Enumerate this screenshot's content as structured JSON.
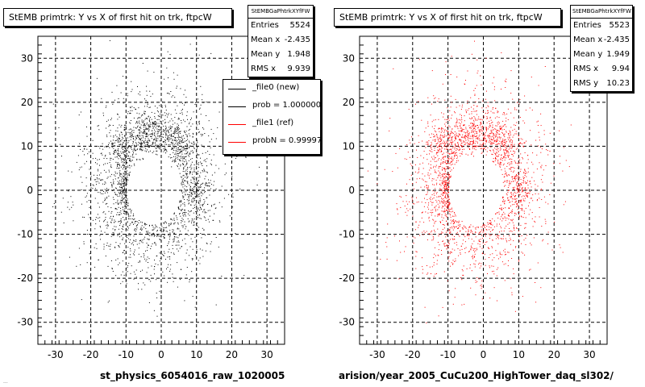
{
  "left_panel": {
    "title": "StEMB primtrk: Y vs X of first hit on trk, ftpcW",
    "stats": {
      "header": "StEMBGaPhtrkXYfFW",
      "rows": [
        {
          "label": "Entries",
          "value": "5524"
        },
        {
          "label": "Mean x",
          "value": "-2.435"
        },
        {
          "label": "Mean y",
          "value": "1.948"
        },
        {
          "label": "RMS x",
          "value": "9.939"
        }
      ]
    },
    "legend": [
      {
        "label": "_file0 (new)",
        "color": "#000000"
      },
      {
        "label": "prob = 1.000000",
        "color": "#000000"
      },
      {
        "label": "_file1 (ref)",
        "color": "#ff0000"
      },
      {
        "label": "probN = 0.999970",
        "color": "#ff0000"
      }
    ],
    "x_title": "st_physics_6054016_raw_1020005",
    "footer_text": "..."
  },
  "right_panel": {
    "title": "StEMB primtrk: Y vs X of first hit on trk, ftpcW",
    "stats": {
      "header": "StEMBGaPhtrkXYfFW",
      "rows": [
        {
          "label": "Entries",
          "value": "5523"
        },
        {
          "label": "Mean x",
          "value": "-2.435"
        },
        {
          "label": "Mean y",
          "value": "1.949"
        },
        {
          "label": "RMS x",
          "value": "9.94"
        },
        {
          "label": "RMS y",
          "value": "10.23"
        }
      ]
    },
    "x_title": "arision/year_2005_CuCu200_HighTower_daq_sl302/"
  },
  "chart_data": [
    {
      "type": "scatter",
      "title": "StEMB primtrk: Y vs X of first hit on trk, ftpcW",
      "xlabel": "st_physics_6054016_raw_1020005",
      "ylabel": "",
      "xlim": [
        -35,
        35
      ],
      "ylim": [
        -35,
        35
      ],
      "x_ticks": [
        -30,
        -20,
        -10,
        0,
        10,
        20,
        30
      ],
      "y_ticks": [
        -30,
        -20,
        -10,
        0,
        10,
        20,
        30
      ],
      "grid": true,
      "marker_color": "#000000",
      "entries": 5524,
      "distribution": "annular ring, inner hole radius ~7, outer radius ~25, centered near (-2.4, 1.9), densest band above y=10 and around x=-10",
      "stats": {
        "entries": 5524,
        "mean_x": -2.435,
        "mean_y": 1.948,
        "rms_x": 9.939
      }
    },
    {
      "type": "scatter",
      "title": "StEMB primtrk: Y vs X of first hit on trk, ftpcW",
      "xlabel": "arision/year_2005_CuCu200_HighTower_daq_sl302/",
      "ylabel": "",
      "xlim": [
        -35,
        35
      ],
      "ylim": [
        -35,
        35
      ],
      "x_ticks": [
        -30,
        -20,
        -10,
        0,
        10,
        20,
        30
      ],
      "y_ticks": [
        -30,
        -20,
        -10,
        0,
        10,
        20,
        30
      ],
      "grid": true,
      "marker_color": "#ff0000",
      "entries": 5523,
      "distribution": "annular ring, inner hole radius ~7, outer radius ~25, centered near (-2.4, 1.9), densest band above y=10 and around x=-10",
      "stats": {
        "entries": 5523,
        "mean_x": -2.435,
        "mean_y": 1.949,
        "rms_x": 9.94,
        "rms_y": 10.23
      }
    }
  ]
}
